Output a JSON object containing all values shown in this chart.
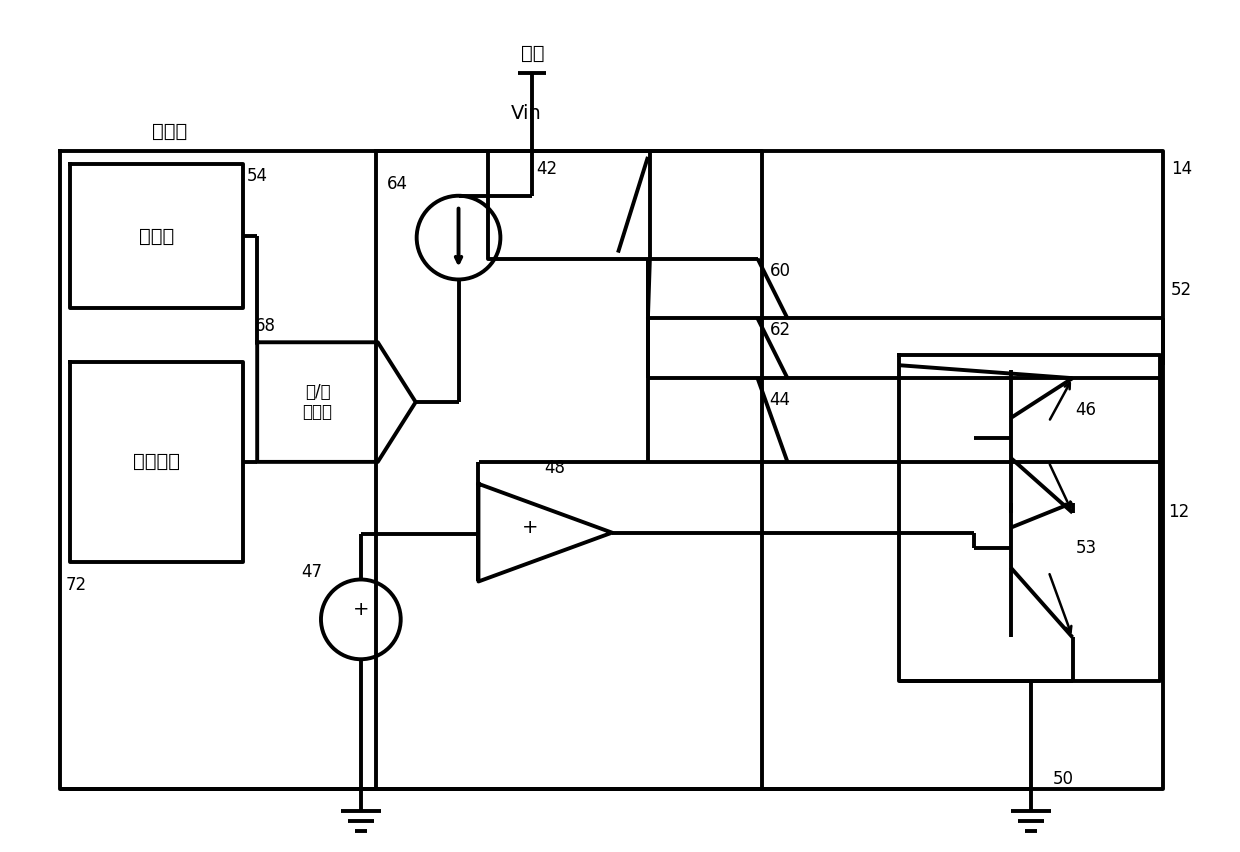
{
  "bg": "#ffffff",
  "lc": "#000000",
  "lw": 2.8,
  "fs": 12,
  "fs_lg": 14,
  "labels": {
    "power": "电源",
    "vin": "Vin",
    "controller": "控制器",
    "timer": "计时器",
    "data_proc": "数据处理",
    "adc": "模/数\n转换器",
    "14": "14",
    "54": "54",
    "64": "64",
    "68": "68",
    "42": "42",
    "60": "60",
    "62": "62",
    "48": "48",
    "44": "44",
    "47": "47",
    "72": "72",
    "52": "52",
    "46": "46",
    "53": "53",
    "12": "12",
    "50": "50"
  }
}
